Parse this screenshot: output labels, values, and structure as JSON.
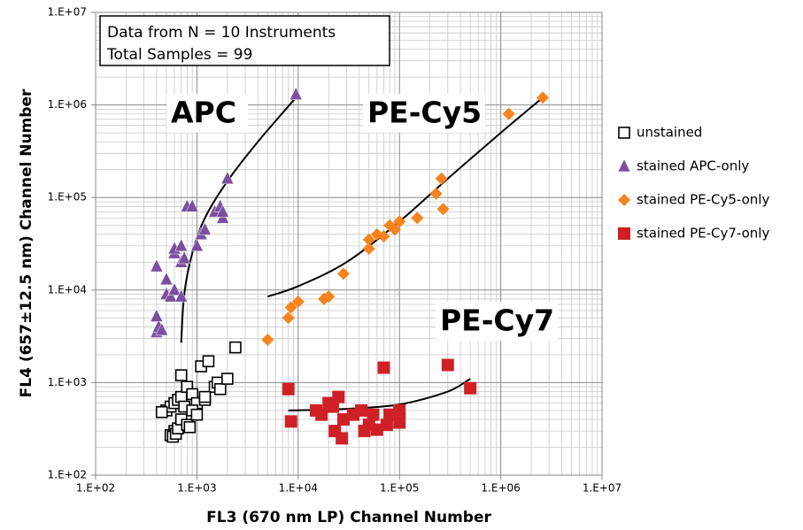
{
  "chart_data": {
    "type": "scatter",
    "x_label": "FL3 (670 nm LP) Channel Number",
    "y_label": "FL4 (657±12.5 nm) Channel Number",
    "log_x": true,
    "log_y": true,
    "grid": true,
    "legend_position": "right",
    "xlim": [
      100,
      10000000
    ],
    "ylim": [
      100,
      10000000
    ],
    "xticks": [
      {
        "value": 100,
        "label": "1.E+02"
      },
      {
        "value": 1000,
        "label": "1.E+03"
      },
      {
        "value": 10000,
        "label": "1.E+04"
      },
      {
        "value": 100000,
        "label": "1.E+05"
      },
      {
        "value": 1000000,
        "label": "1.E+06"
      },
      {
        "value": 10000000,
        "label": "1.E+07"
      }
    ],
    "yticks": [
      {
        "value": 100,
        "label": "1.E+02"
      },
      {
        "value": 1000,
        "label": "1.E+03"
      },
      {
        "value": 10000,
        "label": "1.E+04"
      },
      {
        "value": 100000,
        "label": "1.E+05"
      },
      {
        "value": 1000000,
        "label": "1.E+06"
      },
      {
        "value": 10000000,
        "label": "1.E+07"
      }
    ],
    "annotations": [
      {
        "text": "Data from N = 10 Instruments"
      },
      {
        "text": "Total Samples = 99"
      },
      {
        "text": "APC",
        "color": "#7b4fa0"
      },
      {
        "text": "PE-Cy5",
        "color": "#f7831e"
      },
      {
        "text": "PE-Cy7",
        "color": "#d02027"
      }
    ],
    "series": [
      {
        "name": "unstained",
        "color": "#000000",
        "marker": "open-square",
        "x": [
          500,
          550,
          600,
          650,
          700,
          750,
          800,
          900,
          1000,
          1200,
          1500,
          1600,
          1700,
          2000,
          2400,
          1100,
          1300,
          700,
          600,
          550,
          580,
          620,
          650,
          700,
          800,
          850,
          900,
          1000,
          1200,
          450
        ],
        "values": [
          500,
          550,
          600,
          650,
          700,
          550,
          900,
          750,
          600,
          650,
          900,
          1000,
          850,
          1100,
          2400,
          1500,
          1700,
          1200,
          300,
          270,
          260,
          280,
          320,
          400,
          350,
          330,
          500,
          450,
          700,
          480
        ]
      },
      {
        "name": "stained APC-only",
        "color": "#7b4fa0",
        "marker": "triangle",
        "x": [
          400,
          420,
          400,
          450,
          400,
          500,
          500,
          550,
          600,
          700,
          600,
          600,
          700,
          700,
          750,
          800,
          900,
          1000,
          1100,
          1200,
          1500,
          1700,
          1800,
          1800,
          2000,
          9500
        ],
        "values": [
          3500,
          4000,
          5200,
          3700,
          18000,
          13000,
          9000,
          8500,
          10000,
          8500,
          25000,
          28000,
          30000,
          20000,
          22000,
          80000,
          80000,
          30000,
          40000,
          45000,
          70000,
          80000,
          60000,
          70000,
          160000,
          1300000
        ]
      },
      {
        "name": "stained PE-Cy5-only",
        "color": "#f7831e",
        "marker": "diamond",
        "x": [
          5000,
          8000,
          8500,
          10000,
          18000,
          20000,
          28000,
          50000,
          50000,
          60000,
          70000,
          80000,
          90000,
          100000,
          150000,
          230000,
          260000,
          270000,
          1200000,
          2600000
        ],
        "values": [
          2900,
          5000,
          6500,
          7500,
          8000,
          8500,
          15000,
          28000,
          35000,
          40000,
          38000,
          50000,
          45000,
          55000,
          60000,
          110000,
          160000,
          75000,
          800000,
          1200000
        ]
      },
      {
        "name": "stained PE-Cy7-only",
        "color": "#d02027",
        "marker": "square",
        "x": [
          8000,
          8500,
          15000,
          17000,
          20000,
          22000,
          25000,
          23000,
          27000,
          28000,
          35000,
          42000,
          45000,
          50000,
          55000,
          60000,
          70000,
          75000,
          80000,
          100000,
          300000,
          500000,
          100000
        ],
        "values": [
          850,
          380,
          500,
          450,
          600,
          550,
          700,
          300,
          250,
          400,
          450,
          500,
          300,
          350,
          450,
          310,
          1450,
          350,
          450,
          370,
          1550,
          870,
          500
        ]
      }
    ],
    "trendlines": [
      {
        "color": "#000000",
        "x": [
          700,
          750,
          900,
          1200,
          2000,
          4000,
          9500
        ],
        "values": [
          2700,
          9000,
          25000,
          60000,
          150000,
          400000,
          1200000
        ]
      },
      {
        "color": "#000000",
        "x": [
          5000,
          10000,
          30000,
          100000,
          300000,
          1000000,
          2600000
        ],
        "values": [
          8500,
          11000,
          20000,
          55000,
          160000,
          500000,
          1200000
        ]
      },
      {
        "color": "#000000",
        "x": [
          8000,
          30000,
          100000,
          300000,
          500000
        ],
        "values": [
          500,
          520,
          580,
          800,
          1100
        ]
      }
    ]
  }
}
